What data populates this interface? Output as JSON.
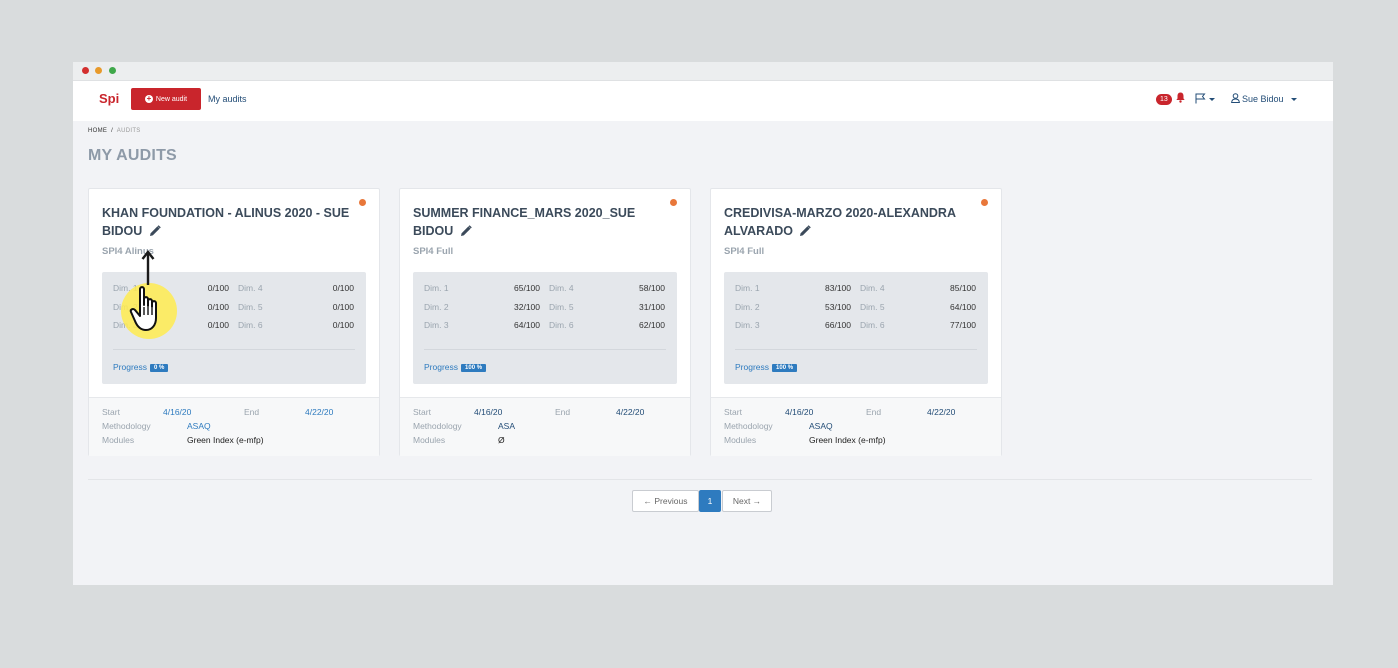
{
  "navbar": {
    "brand": "Spi",
    "new_audit_label": "New audit",
    "my_audits_label": "My audits",
    "notification_count": "13",
    "user_name": "Sue Bidou"
  },
  "breadcrumb": {
    "home": "HOME",
    "separator": "/",
    "current": "AUDITS"
  },
  "page_title": "MY AUDITS",
  "labels": {
    "progress": "Progress",
    "start": "Start",
    "end": "End",
    "methodology": "Methodology",
    "modules": "Modules"
  },
  "cards": [
    {
      "title": "KHAN FOUNDATION - ALINUS 2020 - SUE BIDOU",
      "subtitle": "SPI4 Alinus",
      "status_color": "#e8773a",
      "scores": [
        {
          "label": "Dim. 1",
          "value": "0/100"
        },
        {
          "label": "Dim. 2",
          "value": "0/100"
        },
        {
          "label": "Dim. 3",
          "value": "0/100"
        },
        {
          "label": "Dim. 4",
          "value": "0/100"
        },
        {
          "label": "Dim. 5",
          "value": "0/100"
        },
        {
          "label": "Dim. 6",
          "value": "0/100"
        }
      ],
      "progress": "0 %",
      "start": "4/16/20",
      "end": "4/22/20",
      "methodology": "ASAQ",
      "modules": "Green Index (e-mfp)"
    },
    {
      "title": "SUMMER FINANCE_MARS 2020_SUE BIDOU",
      "subtitle": "SPI4 Full",
      "status_color": "#e8773a",
      "scores": [
        {
          "label": "Dim. 1",
          "value": "65/100"
        },
        {
          "label": "Dim. 2",
          "value": "32/100"
        },
        {
          "label": "Dim. 3",
          "value": "64/100"
        },
        {
          "label": "Dim. 4",
          "value": "58/100"
        },
        {
          "label": "Dim. 5",
          "value": "31/100"
        },
        {
          "label": "Dim. 6",
          "value": "62/100"
        }
      ],
      "progress": "100 %",
      "start": "4/16/20",
      "end": "4/22/20",
      "methodology": "ASA",
      "modules": "Ø"
    },
    {
      "title": "CREDIVISA-MARZO 2020-ALEXANDRA ALVARADO",
      "subtitle": "SPI4 Full",
      "status_color": "#e8773a",
      "scores": [
        {
          "label": "Dim. 1",
          "value": "83/100"
        },
        {
          "label": "Dim. 2",
          "value": "53/100"
        },
        {
          "label": "Dim. 3",
          "value": "66/100"
        },
        {
          "label": "Dim. 4",
          "value": "85/100"
        },
        {
          "label": "Dim. 5",
          "value": "64/100"
        },
        {
          "label": "Dim. 6",
          "value": "77/100"
        }
      ],
      "progress": "100 %",
      "start": "4/16/20",
      "end": "4/22/20",
      "methodology": "ASAQ",
      "modules": "Green Index (e-mfp)"
    }
  ],
  "pagination": {
    "previous": "← Previous",
    "current": "1",
    "next": "Next →"
  },
  "colors": {
    "brand": "#c9252c",
    "accent": "#2e7bbf",
    "status": "#e8773a"
  },
  "icons": [
    "plus-circle-icon",
    "bell-icon",
    "flag-icon",
    "user-icon",
    "pencil-icon",
    "pointer-hand-icon"
  ]
}
